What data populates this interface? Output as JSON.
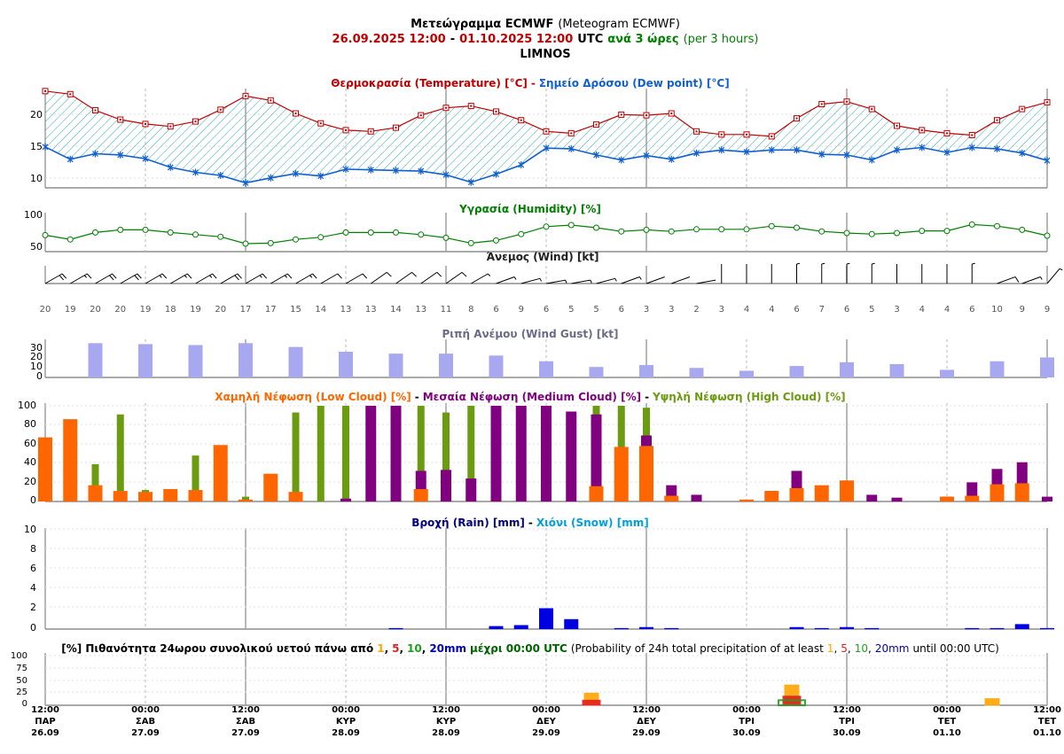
{
  "header": {
    "title": "Μετεώγραμμα ECMWF",
    "title_en": "(Meteogram ECMWF)",
    "range_start": "26.09.2025 12:00",
    "range_sep": "-",
    "range_end": "01.10.2025 12:00",
    "utc": "UTC",
    "step": "ανά 3 ώρες",
    "step_en": "(per 3 hours)",
    "location": "LIMNOS"
  },
  "colors": {
    "temperature": "#c00000",
    "dewpoint": "#1060d0",
    "humidity": "#008000",
    "gust": "#a8a8f0",
    "low_cloud": "#ff6600",
    "medium_cloud": "#800080",
    "high_cloud": "#6b9b10",
    "rain": "#0000e0",
    "snow": "#00a0e0",
    "prob_1": "#ffa500",
    "prob_5": "#e02020",
    "prob_10": "#20a020",
    "prob_20": "#0000c0"
  },
  "time_axis": {
    "ticks": [
      {
        "time": "12:00",
        "day": "ΠΑΡ",
        "date": "26.09"
      },
      {
        "time": "00:00",
        "day": "ΣΑΒ",
        "date": "27.09"
      },
      {
        "time": "12:00",
        "day": "ΣΑΒ",
        "date": "27.09"
      },
      {
        "time": "00:00",
        "day": "ΚΥΡ",
        "date": "28.09"
      },
      {
        "time": "12:00",
        "day": "ΚΥΡ",
        "date": "28.09"
      },
      {
        "time": "00:00",
        "day": "ΔΕΥ",
        "date": "29.09"
      },
      {
        "time": "12:00",
        "day": "ΔΕΥ",
        "date": "29.09"
      },
      {
        "time": "00:00",
        "day": "ΤΡΙ",
        "date": "30.09"
      },
      {
        "time": "12:00",
        "day": "ΤΡΙ",
        "date": "30.09"
      },
      {
        "time": "00:00",
        "day": "ΤΕΤ",
        "date": "01.10"
      },
      {
        "time": "12:00",
        "day": "ΤΕΤ",
        "date": "01.10"
      }
    ]
  },
  "chart_data": [
    {
      "type": "line",
      "id": "temperature",
      "title_parts": [
        "Θερμοκρασία (Temperature) [°C]",
        "-",
        "Σημείο Δρόσου (Dew point) [°C]"
      ],
      "ylim": [
        8,
        24
      ],
      "yticks": [
        "20",
        "15",
        "10"
      ],
      "series": [
        {
          "name": "Θερμοκρασία (Temperature) [°C]",
          "values": [
            23.6,
            23.1,
            20.5,
            19.0,
            18.3,
            17.9,
            18.7,
            20.6,
            22.8,
            22.1,
            20.0,
            18.4,
            17.3,
            17.1,
            17.7,
            19.7,
            20.9,
            21.2,
            20.3,
            18.9,
            17.1,
            16.8,
            18.2,
            19.8,
            19.7,
            20.0,
            17.1,
            16.6,
            16.6,
            16.3,
            19.2,
            21.5,
            21.9,
            20.7,
            18.0,
            17.3,
            16.8,
            16.5,
            18.9,
            20.7,
            21.8
          ]
        },
        {
          "name": "Σημείο Δρόσου (Dew point) [°C]",
          "values": [
            14.6,
            12.6,
            13.5,
            13.3,
            12.7,
            11.3,
            10.5,
            10.0,
            8.8,
            9.6,
            10.3,
            9.9,
            11.0,
            10.9,
            10.8,
            10.7,
            10.1,
            8.9,
            10.2,
            11.7,
            14.4,
            14.3,
            13.3,
            12.5,
            13.2,
            12.6,
            13.6,
            14.1,
            13.8,
            14.1,
            14.1,
            13.4,
            13.3,
            12.5,
            14.1,
            14.5,
            13.7,
            14.5,
            14.3,
            13.6,
            12.4
          ]
        }
      ]
    },
    {
      "type": "line",
      "id": "humidity",
      "title_parts": [
        "Υγρασία (Humidity) [%]"
      ],
      "ylim": [
        30,
        100
      ],
      "yticks": [
        "100",
        "50"
      ],
      "series": [
        {
          "name": "Υγρασία (Humidity) [%]",
          "values": [
            61,
            53,
            66,
            71,
            71,
            66,
            62,
            58,
            45,
            46,
            53,
            57,
            66,
            66,
            66,
            62,
            56,
            46,
            51,
            63,
            77,
            80,
            75,
            68,
            71,
            68,
            72,
            72,
            72,
            78,
            75,
            68,
            65,
            63,
            65,
            69,
            69,
            81,
            78,
            71,
            60
          ]
        }
      ]
    },
    {
      "type": "wind",
      "id": "wind",
      "title_parts": [
        "Άνεμος (Wind) [kt]"
      ],
      "speeds": [
        "20",
        "19",
        "20",
        "20",
        "19",
        "18",
        "19",
        "20",
        "17",
        "17",
        "15",
        "14",
        "13",
        "13",
        "14",
        "13",
        "11",
        "8",
        "6",
        "9",
        "6",
        "5",
        "5",
        "6",
        "3",
        "3",
        "2",
        "3",
        "4",
        "4",
        "6",
        "7",
        "6",
        "5",
        "3",
        "4",
        "4",
        "6",
        "10",
        "9",
        "9"
      ],
      "directions_deg": [
        60,
        60,
        60,
        60,
        60,
        60,
        60,
        60,
        60,
        60,
        60,
        60,
        60,
        55,
        55,
        55,
        55,
        60,
        70,
        75,
        80,
        80,
        75,
        70,
        70,
        70,
        80,
        0,
        0,
        0,
        0,
        0,
        0,
        0,
        0,
        0,
        0,
        0,
        70,
        70,
        40
      ]
    },
    {
      "type": "bar",
      "id": "gust",
      "title_parts": [
        "Ριπή Ανέμου (Wind Gust) [kt]"
      ],
      "ylim": [
        0,
        40
      ],
      "yticks": [
        "30",
        "20",
        "10",
        "0"
      ],
      "values": [
        36,
        35,
        34,
        36,
        32,
        27,
        25,
        25,
        23,
        17,
        11,
        13,
        10,
        7,
        12,
        16,
        14,
        8,
        17,
        21
      ]
    },
    {
      "type": "bar",
      "id": "cloud",
      "title_parts": [
        "Χαμηλή Νέφωση (Low Cloud) [%]",
        "-",
        "Μεσαία Νέφωση (Medium Cloud) [%]",
        "-",
        "Υψηλή Νέφωση (High Cloud) [%]"
      ],
      "ylim": [
        0,
        100
      ],
      "yticks": [
        "100",
        "80",
        "60",
        "40",
        "20",
        "0"
      ],
      "series": [
        {
          "name": "Χαμηλή Νέφωση (Low Cloud) [%]",
          "values": [
            67,
            86,
            17,
            11,
            10,
            13,
            12,
            59,
            2,
            29,
            10,
            0,
            0,
            0,
            0,
            13,
            0,
            0,
            0,
            0,
            0,
            0,
            16,
            57,
            58,
            6,
            0,
            0,
            2,
            11,
            14,
            17,
            22,
            0,
            0,
            0,
            5,
            6,
            18,
            19,
            0
          ]
        },
        {
          "name": "Μεσαία Νέφωση (Medium Cloud) [%]",
          "values": [
            0,
            0,
            0,
            0,
            0,
            0,
            0,
            0,
            0,
            0,
            0,
            0,
            3,
            100,
            100,
            32,
            33,
            24,
            100,
            100,
            100,
            94,
            91,
            0,
            69,
            17,
            7,
            0,
            0,
            11,
            32,
            0,
            0,
            7,
            4,
            0,
            5,
            20,
            34,
            41,
            5
          ]
        },
        {
          "name": "Υψηλή Νέφωση (High Cloud) [%]",
          "values": [
            0,
            0,
            39,
            91,
            12,
            0,
            48,
            0,
            5,
            0,
            93,
            100,
            100,
            0,
            100,
            100,
            93,
            100,
            0,
            0,
            0,
            0,
            100,
            100,
            98,
            0,
            0,
            0,
            0,
            0,
            0,
            0,
            0,
            0,
            0,
            0,
            0,
            0,
            0,
            0,
            0
          ]
        }
      ]
    },
    {
      "type": "bar",
      "id": "rain",
      "title_parts": [
        "Βροχή (Rain) [mm]",
        "-",
        "Χιόνι (Snow) [mm]"
      ],
      "ylim": [
        0,
        10
      ],
      "yticks": [
        "10",
        "8",
        "6",
        "4",
        "2",
        "0"
      ],
      "series": [
        {
          "name": "Βροχή (Rain) [mm]",
          "values": [
            0,
            0,
            0,
            0,
            0,
            0,
            0,
            0,
            0,
            0,
            0,
            0,
            0,
            0,
            0.1,
            0,
            0,
            0,
            0.3,
            0.4,
            2.1,
            1.0,
            0,
            0.1,
            0.2,
            0.1,
            0,
            0,
            0,
            0,
            0.2,
            0.1,
            0.2,
            0.1,
            0,
            0,
            0,
            0.1,
            0.1,
            0.5,
            0.1
          ]
        },
        {
          "name": "Χιόνι (Snow) [mm]",
          "values": [
            0,
            0,
            0,
            0,
            0,
            0,
            0,
            0,
            0,
            0,
            0,
            0,
            0,
            0,
            0,
            0,
            0,
            0,
            0,
            0,
            0,
            0,
            0,
            0,
            0,
            0,
            0,
            0,
            0,
            0,
            0,
            0,
            0,
            0,
            0,
            0,
            0,
            0,
            0,
            0,
            0
          ]
        }
      ]
    },
    {
      "type": "bar",
      "id": "probability",
      "title_parts": [
        "[%] Πιθανότητα 24ωρου συνολικού υετού πάνω από",
        "1",
        ",",
        "5",
        ",",
        "10",
        ",",
        "20mm",
        "μέχρι 00:00 UTC",
        "(Probability of 24h total precipitation of at least",
        "1",
        ",",
        "5",
        ",",
        "10",
        ",",
        "20mm",
        "until 00:00 UTC)"
      ],
      "ylim": [
        0,
        100
      ],
      "yticks": [
        "100",
        "75",
        "50",
        "25",
        "0"
      ],
      "thresholds": [
        "1",
        "5",
        "10",
        "20mm"
      ],
      "values_by_day": [
        {
          "day": "27.09",
          "p1": 0,
          "p5": 0,
          "p10": 0,
          "p20": 0
        },
        {
          "day": "28.09",
          "p1": 0,
          "p5": 0,
          "p10": 0,
          "p20": 0
        },
        {
          "day": "29.09",
          "p1": 24,
          "p5": 10,
          "p10": 0,
          "p20": 0
        },
        {
          "day": "30.09",
          "p1": 40,
          "p5": 18,
          "p10": 10,
          "p20": 0
        },
        {
          "day": "01.10",
          "p1": 13,
          "p5": 0,
          "p10": 0,
          "p20": 0
        }
      ]
    }
  ]
}
